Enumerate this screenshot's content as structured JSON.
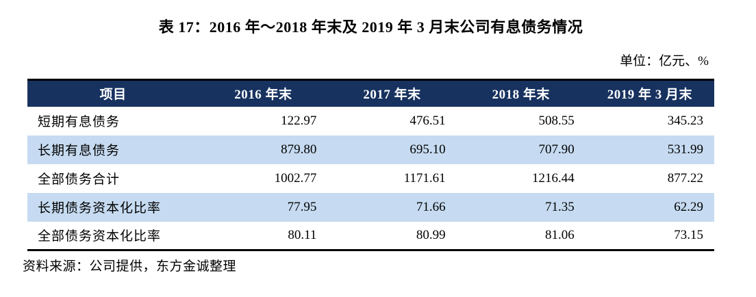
{
  "title": "表 17：2016 年～2018 年末及 2019 年 3 月末公司有息债务情况",
  "unit_label": "单位：亿元、%",
  "table": {
    "columns": [
      "项目",
      "2016 年末",
      "2017 年末",
      "2018 年末",
      "2019 年 3 月末"
    ],
    "rows": [
      {
        "label": "短期有息债务",
        "values": [
          "122.97",
          "476.51",
          "508.55",
          "345.23"
        ]
      },
      {
        "label": "长期有息债务",
        "values": [
          "879.80",
          "695.10",
          "707.90",
          "531.99"
        ]
      },
      {
        "label": "全部债务合计",
        "values": [
          "1002.77",
          "1171.61",
          "1216.44",
          "877.22"
        ]
      },
      {
        "label": "长期债务资本化比率",
        "values": [
          "77.95",
          "71.66",
          "71.35",
          "62.29"
        ]
      },
      {
        "label": "全部债务资本化比率",
        "values": [
          "80.11",
          "80.99",
          "81.06",
          "73.15"
        ]
      }
    ]
  },
  "source": "资料来源：公司提供，东方金诚整理",
  "colors": {
    "header_bg": "#17325F",
    "header_text": "#FFFFFF",
    "stripe_bg": "#C6DBF1",
    "border": "#000000"
  }
}
